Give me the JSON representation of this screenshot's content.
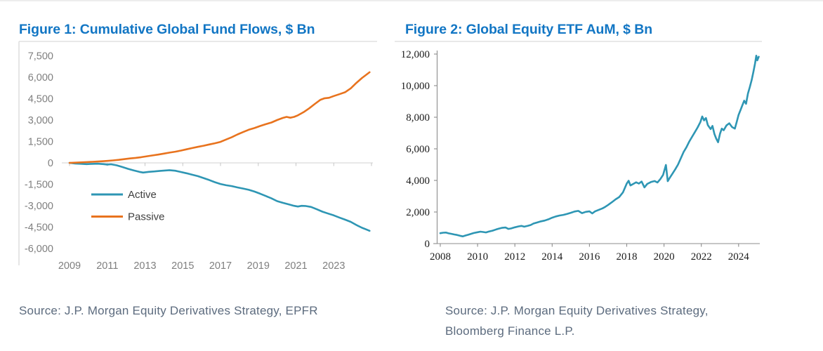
{
  "page": {
    "fig1": {
      "title": "Figure 1: Cumulative Global Fund Flows, $ Bn",
      "source": "Source: J.P. Morgan Equity Derivatives Strategy, EPFR"
    },
    "fig2": {
      "title": "Figure 2: Global Equity ETF AuM, $ Bn",
      "source_line1": "Source: J.P. Morgan Equity Derivatives Strategy,",
      "source_line2": "Bloomberg Finance L.P."
    },
    "colors": {
      "title_blue": "#1276C4",
      "active_teal": "#2E96B4",
      "passive_orange": "#E8731E",
      "axis_gray": "#7F7F7F",
      "serif_black": "#1A1A1A",
      "source_slate": "#5C6B7E",
      "border_gray": "#D9D9D9"
    }
  },
  "chart_data": [
    {
      "id": "fig1",
      "type": "line",
      "title": "Figure 1: Cumulative Global Fund Flows, $ Bn",
      "xlabel": "",
      "ylabel": "",
      "xlim": [
        2008.9,
        2025.2
      ],
      "ylim": [
        -6000,
        7500
      ],
      "grid": "zero-line-only",
      "legend_position": "inside-center-left",
      "xticks": {
        "values": [
          2009,
          2011,
          2013,
          2015,
          2017,
          2019,
          2021,
          2023
        ],
        "labels": [
          "2009",
          "2011",
          "2013",
          "2015",
          "2017",
          "2019",
          "2021",
          "2023"
        ]
      },
      "yticks": {
        "values": [
          7500,
          6000,
          4500,
          3000,
          1500,
          0,
          -1500,
          -3000,
          -4500,
          -6000
        ],
        "labels": [
          "7,500",
          "6,000",
          "4,500",
          "3,000",
          "1,500",
          "0",
          "-1,500",
          "-3,000",
          "-4,500",
          "-6,000"
        ]
      },
      "series": [
        {
          "name": "Active",
          "color": "#2E96B4",
          "points": [
            [
              2009.0,
              0
            ],
            [
              2009.3,
              -45
            ],
            [
              2009.6,
              -65
            ],
            [
              2009.9,
              -90
            ],
            [
              2010.2,
              -70
            ],
            [
              2010.5,
              -60
            ],
            [
              2010.8,
              -90
            ],
            [
              2011.0,
              -120
            ],
            [
              2011.2,
              -100
            ],
            [
              2011.5,
              -170
            ],
            [
              2011.8,
              -290
            ],
            [
              2012.1,
              -420
            ],
            [
              2012.4,
              -530
            ],
            [
              2012.7,
              -630
            ],
            [
              2012.9,
              -680
            ],
            [
              2013.2,
              -630
            ],
            [
              2013.5,
              -600
            ],
            [
              2013.8,
              -560
            ],
            [
              2014.1,
              -530
            ],
            [
              2014.3,
              -510
            ],
            [
              2014.6,
              -550
            ],
            [
              2014.9,
              -640
            ],
            [
              2015.2,
              -730
            ],
            [
              2015.5,
              -830
            ],
            [
              2015.8,
              -930
            ],
            [
              2016.1,
              -1060
            ],
            [
              2016.4,
              -1200
            ],
            [
              2016.7,
              -1350
            ],
            [
              2017.0,
              -1480
            ],
            [
              2017.3,
              -1570
            ],
            [
              2017.6,
              -1630
            ],
            [
              2017.9,
              -1720
            ],
            [
              2018.2,
              -1800
            ],
            [
              2018.5,
              -1890
            ],
            [
              2018.8,
              -2010
            ],
            [
              2019.1,
              -2160
            ],
            [
              2019.4,
              -2320
            ],
            [
              2019.7,
              -2490
            ],
            [
              2020.0,
              -2680
            ],
            [
              2020.3,
              -2800
            ],
            [
              2020.6,
              -2900
            ],
            [
              2020.9,
              -3010
            ],
            [
              2021.1,
              -3060
            ],
            [
              2021.3,
              -3010
            ],
            [
              2021.5,
              -3020
            ],
            [
              2021.8,
              -3090
            ],
            [
              2022.1,
              -3250
            ],
            [
              2022.4,
              -3420
            ],
            [
              2022.7,
              -3550
            ],
            [
              2023.0,
              -3680
            ],
            [
              2023.3,
              -3830
            ],
            [
              2023.6,
              -3980
            ],
            [
              2023.9,
              -4130
            ],
            [
              2024.2,
              -4350
            ],
            [
              2024.5,
              -4550
            ],
            [
              2024.7,
              -4650
            ],
            [
              2024.9,
              -4760
            ]
          ]
        },
        {
          "name": "Passive",
          "color": "#E8731E",
          "points": [
            [
              2009.0,
              0
            ],
            [
              2009.3,
              15
            ],
            [
              2009.6,
              35
            ],
            [
              2009.9,
              55
            ],
            [
              2010.2,
              75
            ],
            [
              2010.5,
              95
            ],
            [
              2010.8,
              120
            ],
            [
              2011.0,
              140
            ],
            [
              2011.3,
              170
            ],
            [
              2011.6,
              210
            ],
            [
              2011.9,
              260
            ],
            [
              2012.2,
              310
            ],
            [
              2012.5,
              350
            ],
            [
              2012.8,
              400
            ],
            [
              2013.1,
              460
            ],
            [
              2013.4,
              520
            ],
            [
              2013.7,
              580
            ],
            [
              2014.0,
              650
            ],
            [
              2014.3,
              720
            ],
            [
              2014.6,
              780
            ],
            [
              2014.9,
              860
            ],
            [
              2015.2,
              950
            ],
            [
              2015.5,
              1040
            ],
            [
              2015.8,
              1120
            ],
            [
              2016.1,
              1200
            ],
            [
              2016.4,
              1290
            ],
            [
              2016.7,
              1370
            ],
            [
              2017.0,
              1470
            ],
            [
              2017.3,
              1640
            ],
            [
              2017.6,
              1800
            ],
            [
              2017.9,
              1990
            ],
            [
              2018.2,
              2160
            ],
            [
              2018.5,
              2320
            ],
            [
              2018.8,
              2440
            ],
            [
              2019.1,
              2580
            ],
            [
              2019.4,
              2710
            ],
            [
              2019.7,
              2830
            ],
            [
              2020.0,
              3000
            ],
            [
              2020.3,
              3150
            ],
            [
              2020.5,
              3220
            ],
            [
              2020.7,
              3160
            ],
            [
              2020.9,
              3220
            ],
            [
              2021.1,
              3330
            ],
            [
              2021.4,
              3550
            ],
            [
              2021.7,
              3820
            ],
            [
              2022.0,
              4130
            ],
            [
              2022.3,
              4420
            ],
            [
              2022.5,
              4520
            ],
            [
              2022.75,
              4560
            ],
            [
              2023.0,
              4680
            ],
            [
              2023.3,
              4810
            ],
            [
              2023.6,
              4950
            ],
            [
              2023.9,
              5220
            ],
            [
              2024.2,
              5600
            ],
            [
              2024.5,
              5950
            ],
            [
              2024.7,
              6150
            ],
            [
              2024.9,
              6350
            ]
          ]
        }
      ]
    },
    {
      "id": "fig2",
      "type": "line",
      "title": "Figure 2: Global Equity ETF AuM, $ Bn",
      "xlabel": "",
      "ylabel": "",
      "xlim": [
        2007.8,
        2025.4
      ],
      "ylim": [
        0,
        12000
      ],
      "grid": "off",
      "legend_position": "none",
      "xticks": {
        "values": [
          2008,
          2010,
          2012,
          2014,
          2016,
          2018,
          2020,
          2022,
          2024
        ],
        "labels": [
          "2008",
          "2010",
          "2012",
          "2014",
          "2016",
          "2018",
          "2020",
          "2022",
          "2024"
        ]
      },
      "yticks": {
        "values": [
          12000,
          10000,
          8000,
          6000,
          4000,
          2000,
          0
        ],
        "labels": [
          "12,000",
          "10,000",
          "8,000",
          "6,000",
          "4,000",
          "2,000",
          "0"
        ]
      },
      "series": [
        {
          "name": "Global Equity ETF AuM",
          "color": "#2E96B4",
          "points": [
            [
              2008.0,
              660
            ],
            [
              2008.15,
              690
            ],
            [
              2008.3,
              700
            ],
            [
              2008.45,
              650
            ],
            [
              2008.6,
              620
            ],
            [
              2008.75,
              580
            ],
            [
              2008.9,
              545
            ],
            [
              2009.05,
              500
            ],
            [
              2009.2,
              460
            ],
            [
              2009.35,
              510
            ],
            [
              2009.5,
              560
            ],
            [
              2009.65,
              620
            ],
            [
              2009.8,
              670
            ],
            [
              2010.0,
              720
            ],
            [
              2010.15,
              755
            ],
            [
              2010.3,
              735
            ],
            [
              2010.45,
              705
            ],
            [
              2010.6,
              760
            ],
            [
              2010.8,
              820
            ],
            [
              2011.0,
              900
            ],
            [
              2011.15,
              950
            ],
            [
              2011.3,
              995
            ],
            [
              2011.5,
              1020
            ],
            [
              2011.65,
              930
            ],
            [
              2011.8,
              960
            ],
            [
              2012.0,
              1030
            ],
            [
              2012.2,
              1090
            ],
            [
              2012.35,
              1120
            ],
            [
              2012.5,
              1070
            ],
            [
              2012.7,
              1130
            ],
            [
              2012.85,
              1180
            ],
            [
              2013.0,
              1270
            ],
            [
              2013.2,
              1340
            ],
            [
              2013.4,
              1410
            ],
            [
              2013.6,
              1460
            ],
            [
              2013.8,
              1540
            ],
            [
              2014.0,
              1640
            ],
            [
              2014.2,
              1720
            ],
            [
              2014.4,
              1780
            ],
            [
              2014.6,
              1820
            ],
            [
              2014.8,
              1880
            ],
            [
              2015.0,
              1950
            ],
            [
              2015.2,
              2030
            ],
            [
              2015.4,
              2070
            ],
            [
              2015.6,
              1930
            ],
            [
              2015.8,
              2010
            ],
            [
              2016.0,
              2040
            ],
            [
              2016.15,
              1910
            ],
            [
              2016.3,
              2040
            ],
            [
              2016.5,
              2140
            ],
            [
              2016.7,
              2230
            ],
            [
              2016.85,
              2330
            ],
            [
              2017.0,
              2450
            ],
            [
              2017.2,
              2620
            ],
            [
              2017.4,
              2800
            ],
            [
              2017.6,
              2950
            ],
            [
              2017.8,
              3250
            ],
            [
              2018.0,
              3800
            ],
            [
              2018.1,
              3980
            ],
            [
              2018.2,
              3680
            ],
            [
              2018.35,
              3780
            ],
            [
              2018.5,
              3880
            ],
            [
              2018.65,
              3800
            ],
            [
              2018.8,
              3930
            ],
            [
              2018.95,
              3560
            ],
            [
              2019.1,
              3780
            ],
            [
              2019.3,
              3900
            ],
            [
              2019.5,
              3960
            ],
            [
              2019.65,
              3870
            ],
            [
              2019.8,
              4080
            ],
            [
              2019.95,
              4350
            ],
            [
              2020.1,
              4980
            ],
            [
              2020.2,
              3950
            ],
            [
              2020.3,
              4150
            ],
            [
              2020.45,
              4420
            ],
            [
              2020.6,
              4700
            ],
            [
              2020.75,
              5000
            ],
            [
              2020.9,
              5400
            ],
            [
              2021.05,
              5800
            ],
            [
              2021.2,
              6100
            ],
            [
              2021.35,
              6450
            ],
            [
              2021.5,
              6750
            ],
            [
              2021.65,
              7050
            ],
            [
              2021.8,
              7350
            ],
            [
              2021.95,
              7700
            ],
            [
              2022.05,
              8050
            ],
            [
              2022.15,
              7800
            ],
            [
              2022.25,
              7950
            ],
            [
              2022.35,
              7500
            ],
            [
              2022.5,
              7250
            ],
            [
              2022.6,
              7450
            ],
            [
              2022.7,
              6950
            ],
            [
              2022.8,
              6650
            ],
            [
              2022.9,
              6420
            ],
            [
              2023.0,
              6950
            ],
            [
              2023.1,
              7280
            ],
            [
              2023.2,
              7180
            ],
            [
              2023.35,
              7480
            ],
            [
              2023.5,
              7620
            ],
            [
              2023.65,
              7380
            ],
            [
              2023.8,
              7280
            ],
            [
              2023.9,
              7700
            ],
            [
              2024.0,
              8150
            ],
            [
              2024.1,
              8450
            ],
            [
              2024.2,
              8750
            ],
            [
              2024.3,
              9050
            ],
            [
              2024.4,
              8850
            ],
            [
              2024.5,
              9500
            ],
            [
              2024.6,
              9900
            ],
            [
              2024.7,
              10350
            ],
            [
              2024.8,
              10900
            ],
            [
              2024.88,
              11400
            ],
            [
              2024.95,
              11900
            ],
            [
              2025.0,
              11600
            ],
            [
              2025.08,
              11830
            ]
          ]
        }
      ]
    }
  ]
}
